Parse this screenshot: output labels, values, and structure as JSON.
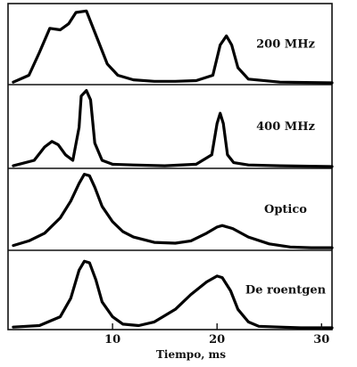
{
  "chart_data": {
    "type": "line",
    "xlabel": "Tiempo, ms",
    "xlim": [
      0,
      31
    ],
    "x_ticks": [
      10,
      20,
      30
    ],
    "x_tick_labels": [
      "10",
      "20",
      "30"
    ],
    "y_axis_shown": false,
    "grid": false,
    "legend": "none",
    "panels": [
      {
        "name": "200 MHz",
        "label": "200 MHz",
        "x": [
          0.5,
          2.0,
          3.0,
          4.0,
          5.0,
          5.8,
          6.5,
          7.5,
          8.5,
          9.5,
          10.5,
          12,
          14,
          16,
          18,
          19.6,
          20.3,
          20.9,
          21.4,
          22.0,
          23.0,
          26,
          31
        ],
        "y": [
          0.01,
          0.1,
          0.4,
          0.72,
          0.7,
          0.78,
          0.93,
          0.95,
          0.6,
          0.25,
          0.1,
          0.04,
          0.02,
          0.02,
          0.03,
          0.1,
          0.5,
          0.62,
          0.5,
          0.2,
          0.05,
          0.01,
          0.0
        ]
      },
      {
        "name": "400 MHz",
        "label": "400 MHz",
        "x": [
          0.5,
          2.5,
          3.5,
          4.2,
          4.8,
          5.5,
          6.2,
          6.8,
          7.0,
          7.5,
          7.9,
          8.3,
          9,
          10,
          12,
          15,
          18,
          19.5,
          20.0,
          20.3,
          20.6,
          21.0,
          21.6,
          23,
          26,
          31
        ],
        "y": [
          0.01,
          0.08,
          0.25,
          0.32,
          0.28,
          0.15,
          0.08,
          0.5,
          0.9,
          0.97,
          0.85,
          0.3,
          0.08,
          0.03,
          0.02,
          0.01,
          0.03,
          0.15,
          0.55,
          0.68,
          0.55,
          0.15,
          0.05,
          0.02,
          0.01,
          0.0
        ]
      },
      {
        "name": "Optico",
        "label": "Optico",
        "x": [
          0.5,
          2,
          3.5,
          5,
          6,
          6.8,
          7.3,
          7.8,
          8.3,
          9,
          10,
          11,
          12,
          14,
          16,
          17.5,
          19,
          20,
          20.5,
          21.5,
          23,
          25,
          27,
          29,
          31
        ],
        "y": [
          0.04,
          0.1,
          0.2,
          0.4,
          0.62,
          0.85,
          0.97,
          0.95,
          0.8,
          0.55,
          0.35,
          0.22,
          0.15,
          0.08,
          0.07,
          0.1,
          0.2,
          0.28,
          0.3,
          0.26,
          0.15,
          0.06,
          0.02,
          0.01,
          0.01
        ]
      },
      {
        "name": "De roentgen",
        "label": "De roentgen",
        "x": [
          0.5,
          3,
          5,
          6,
          6.8,
          7.3,
          7.8,
          8.4,
          9,
          10,
          11,
          12.5,
          14,
          16,
          17.5,
          19,
          20.0,
          20.5,
          21.3,
          22,
          23,
          24,
          26,
          28,
          31
        ],
        "y": [
          0.01,
          0.03,
          0.15,
          0.4,
          0.78,
          0.9,
          0.88,
          0.65,
          0.35,
          0.15,
          0.05,
          0.03,
          0.08,
          0.25,
          0.45,
          0.62,
          0.7,
          0.68,
          0.5,
          0.25,
          0.08,
          0.02,
          0.01,
          0.0,
          0.0
        ]
      }
    ]
  }
}
